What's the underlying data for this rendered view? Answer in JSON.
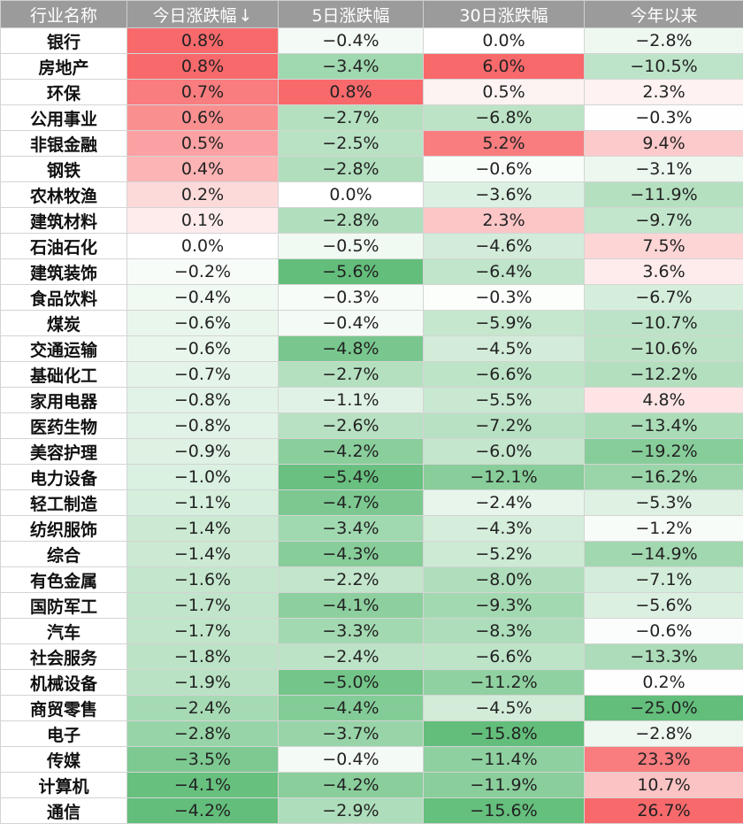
{
  "chart_data": {
    "type": "table",
    "columns": [
      "行业名称",
      "今日涨跌幅",
      "5日涨跌幅",
      "30日涨跌幅",
      "今年以来"
    ],
    "sort_indicator": "↓",
    "sorted_column": 1,
    "colors": {
      "header_bg": "#9b9b9b",
      "header_text": "#ffffff",
      "positive": "#f8696b",
      "negative": "#63be7b",
      "neutral": "#ffffff"
    },
    "rows": [
      [
        "银行",
        "0.8%",
        "−0.4%",
        "0.0%",
        "−2.8%"
      ],
      [
        "房地产",
        "0.8%",
        "−3.4%",
        "6.0%",
        "−10.5%"
      ],
      [
        "环保",
        "0.7%",
        "0.8%",
        "0.5%",
        "2.3%"
      ],
      [
        "公用事业",
        "0.6%",
        "−2.7%",
        "−6.8%",
        "−0.3%"
      ],
      [
        "非银金融",
        "0.5%",
        "−2.5%",
        "5.2%",
        "9.4%"
      ],
      [
        "钢铁",
        "0.4%",
        "−2.8%",
        "−0.6%",
        "−3.1%"
      ],
      [
        "农林牧渔",
        "0.2%",
        "0.0%",
        "−3.6%",
        "−11.9%"
      ],
      [
        "建筑材料",
        "0.1%",
        "−2.8%",
        "2.3%",
        "−9.7%"
      ],
      [
        "石油石化",
        "0.0%",
        "−0.5%",
        "−4.6%",
        "7.5%"
      ],
      [
        "建筑装饰",
        "−0.2%",
        "−5.6%",
        "−6.4%",
        "3.6%"
      ],
      [
        "食品饮料",
        "−0.4%",
        "−0.3%",
        "−0.3%",
        "−6.7%"
      ],
      [
        "煤炭",
        "−0.6%",
        "−0.4%",
        "−5.9%",
        "−10.7%"
      ],
      [
        "交通运输",
        "−0.6%",
        "−4.8%",
        "−4.5%",
        "−10.6%"
      ],
      [
        "基础化工",
        "−0.7%",
        "−2.7%",
        "−6.6%",
        "−12.2%"
      ],
      [
        "家用电器",
        "−0.8%",
        "−1.1%",
        "−5.5%",
        "4.8%"
      ],
      [
        "医药生物",
        "−0.8%",
        "−2.6%",
        "−7.2%",
        "−13.4%"
      ],
      [
        "美容护理",
        "−0.9%",
        "−4.2%",
        "−6.0%",
        "−19.2%"
      ],
      [
        "电力设备",
        "−1.0%",
        "−5.4%",
        "−12.1%",
        "−16.2%"
      ],
      [
        "轻工制造",
        "−1.1%",
        "−4.7%",
        "−2.4%",
        "−5.3%"
      ],
      [
        "纺织服饰",
        "−1.4%",
        "−3.4%",
        "−4.3%",
        "−1.2%"
      ],
      [
        "综合",
        "−1.4%",
        "−4.3%",
        "−5.2%",
        "−14.9%"
      ],
      [
        "有色金属",
        "−1.6%",
        "−2.2%",
        "−8.0%",
        "−7.1%"
      ],
      [
        "国防军工",
        "−1.7%",
        "−4.1%",
        "−9.3%",
        "−5.6%"
      ],
      [
        "汽车",
        "−1.7%",
        "−3.3%",
        "−8.3%",
        "−0.6%"
      ],
      [
        "社会服务",
        "−1.8%",
        "−2.4%",
        "−6.6%",
        "−13.3%"
      ],
      [
        "机械设备",
        "−1.9%",
        "−5.0%",
        "−11.2%",
        "0.2%"
      ],
      [
        "商贸零售",
        "−2.4%",
        "−4.4%",
        "−4.5%",
        "−25.0%"
      ],
      [
        "电子",
        "−2.8%",
        "−3.7%",
        "−15.8%",
        "−2.8%"
      ],
      [
        "传媒",
        "−3.5%",
        "−0.4%",
        "−11.4%",
        "23.3%"
      ],
      [
        "计算机",
        "−4.1%",
        "−4.2%",
        "−11.9%",
        "10.7%"
      ],
      [
        "通信",
        "−4.2%",
        "−2.9%",
        "−15.6%",
        "26.7%"
      ]
    ]
  }
}
